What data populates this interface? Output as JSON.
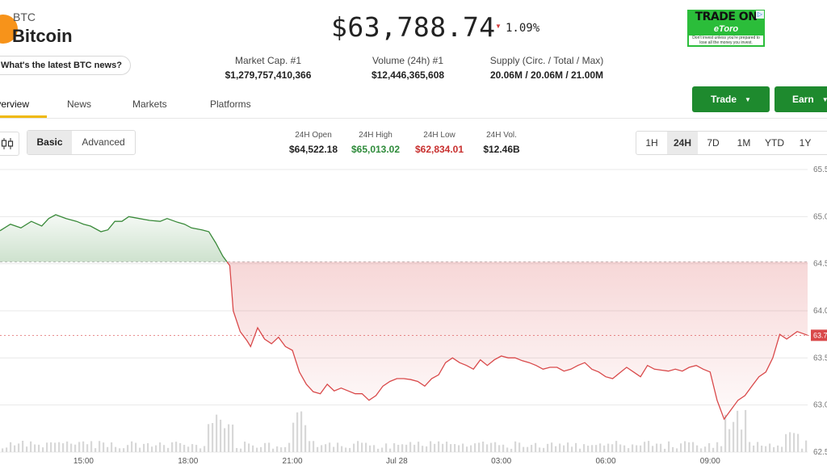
{
  "coin": {
    "symbol": "BTC",
    "name": "Bitcoin",
    "news_prompt": "What's the latest BTC news?",
    "price": "$63,788.74",
    "change": "1.09%",
    "change_direction": "down",
    "brand_color": "#f7931a"
  },
  "ad": {
    "title": "TRADE ON",
    "brand": "eToro",
    "fineprint": "Don't invest unless you're prepared to lose all the money you invest.",
    "close_glyph": "▷"
  },
  "stats": [
    {
      "label": "Market Cap. #1",
      "value": "$1,279,757,410,366"
    },
    {
      "label": "Volume (24h) #1",
      "value": "$12,446,365,608"
    },
    {
      "label": "Supply (Circ. / Total / Max)",
      "value": "20.06M / 20.06M / 21.00M"
    }
  ],
  "tabs": [
    "Overview",
    "News",
    "Markets",
    "Platforms"
  ],
  "active_tab": "Overview",
  "actions": {
    "trade": "Trade",
    "earn": "Earn"
  },
  "view_toggle": {
    "basic": "Basic",
    "advanced": "Advanced",
    "selected": "Basic"
  },
  "ohlc": [
    {
      "label": "24H Open",
      "value": "$64,522.18",
      "color": "#222222"
    },
    {
      "label": "24H High",
      "value": "$65,013.02",
      "color": "#2e8b3a"
    },
    {
      "label": "24H Low",
      "value": "$62,834.01",
      "color": "#c8302f"
    },
    {
      "label": "24H Vol.",
      "value": "$12.46B",
      "color": "#222222"
    }
  ],
  "ranges": [
    "1H",
    "24H",
    "7D",
    "1M",
    "YTD",
    "1Y"
  ],
  "active_range": "24H",
  "chart_data": {
    "type": "area",
    "baseline": 64.52,
    "last_value_label": "63.7",
    "y_ticks": [
      "65.5",
      "65.0",
      "64.5",
      "64.0",
      "63.5",
      "63.0",
      "62.5"
    ],
    "y_tick_values": [
      65.5,
      65.0,
      64.5,
      64.0,
      63.5,
      63.0,
      62.5
    ],
    "x_ticks": [
      "15:00",
      "18:00",
      "21:00",
      "Jul 28",
      "03:00",
      "06:00",
      "09:00"
    ],
    "x_tick_hours": [
      15,
      18,
      21,
      24,
      27,
      30,
      33
    ],
    "x_range": [
      12.6,
      35.8
    ],
    "y_range": [
      62.5,
      65.5
    ],
    "up_color": "#3a8a3a",
    "down_color": "#d9494a",
    "series": [
      {
        "values": [
          [
            12.6,
            64.85
          ],
          [
            12.9,
            64.92
          ],
          [
            13.2,
            64.88
          ],
          [
            13.5,
            64.95
          ],
          [
            13.8,
            64.9
          ],
          [
            14.0,
            64.98
          ],
          [
            14.2,
            65.02
          ],
          [
            14.5,
            64.98
          ],
          [
            14.8,
            64.95
          ],
          [
            15.0,
            64.92
          ],
          [
            15.2,
            64.9
          ],
          [
            15.5,
            64.84
          ],
          [
            15.7,
            64.86
          ],
          [
            15.9,
            64.95
          ],
          [
            16.1,
            64.95
          ],
          [
            16.3,
            65.0
          ],
          [
            16.6,
            64.98
          ],
          [
            16.9,
            64.96
          ],
          [
            17.2,
            64.95
          ],
          [
            17.4,
            64.98
          ],
          [
            17.7,
            64.94
          ],
          [
            17.9,
            64.92
          ],
          [
            18.1,
            64.88
          ],
          [
            18.4,
            64.86
          ],
          [
            18.6,
            64.84
          ],
          [
            18.8,
            64.72
          ],
          [
            19.0,
            64.58
          ],
          [
            19.2,
            64.48
          ],
          [
            19.3,
            64.0
          ],
          [
            19.5,
            63.78
          ],
          [
            19.7,
            63.68
          ],
          [
            19.8,
            63.62
          ],
          [
            20.0,
            63.82
          ],
          [
            20.2,
            63.7
          ],
          [
            20.4,
            63.65
          ],
          [
            20.6,
            63.72
          ],
          [
            20.8,
            63.62
          ],
          [
            21.0,
            63.58
          ],
          [
            21.2,
            63.35
          ],
          [
            21.4,
            63.22
          ],
          [
            21.6,
            63.14
          ],
          [
            21.8,
            63.12
          ],
          [
            22.0,
            63.22
          ],
          [
            22.2,
            63.15
          ],
          [
            22.4,
            63.18
          ],
          [
            22.6,
            63.15
          ],
          [
            22.8,
            63.12
          ],
          [
            23.0,
            63.12
          ],
          [
            23.2,
            63.05
          ],
          [
            23.4,
            63.1
          ],
          [
            23.6,
            63.2
          ],
          [
            23.8,
            63.25
          ],
          [
            24.0,
            63.28
          ],
          [
            24.2,
            63.28
          ],
          [
            24.4,
            63.27
          ],
          [
            24.6,
            63.25
          ],
          [
            24.8,
            63.2
          ],
          [
            25.0,
            63.28
          ],
          [
            25.2,
            63.32
          ],
          [
            25.4,
            63.45
          ],
          [
            25.6,
            63.5
          ],
          [
            25.8,
            63.45
          ],
          [
            26.0,
            63.42
          ],
          [
            26.2,
            63.38
          ],
          [
            26.4,
            63.48
          ],
          [
            26.6,
            63.42
          ],
          [
            26.8,
            63.48
          ],
          [
            27.0,
            63.52
          ],
          [
            27.2,
            63.5
          ],
          [
            27.4,
            63.5
          ],
          [
            27.6,
            63.47
          ],
          [
            27.8,
            63.45
          ],
          [
            28.0,
            63.42
          ],
          [
            28.2,
            63.38
          ],
          [
            28.4,
            63.4
          ],
          [
            28.6,
            63.4
          ],
          [
            28.8,
            63.36
          ],
          [
            29.0,
            63.38
          ],
          [
            29.2,
            63.42
          ],
          [
            29.4,
            63.45
          ],
          [
            29.6,
            63.38
          ],
          [
            29.8,
            63.35
          ],
          [
            30.0,
            63.3
          ],
          [
            30.2,
            63.28
          ],
          [
            30.4,
            63.34
          ],
          [
            30.6,
            63.4
          ],
          [
            30.8,
            63.35
          ],
          [
            31.0,
            63.3
          ],
          [
            31.2,
            63.42
          ],
          [
            31.4,
            63.38
          ],
          [
            31.6,
            63.37
          ],
          [
            31.8,
            63.36
          ],
          [
            32.0,
            63.38
          ],
          [
            32.2,
            63.36
          ],
          [
            32.4,
            63.4
          ],
          [
            32.6,
            63.42
          ],
          [
            32.8,
            63.38
          ],
          [
            33.0,
            63.35
          ],
          [
            33.2,
            63.05
          ],
          [
            33.4,
            62.85
          ],
          [
            33.6,
            62.95
          ],
          [
            33.8,
            63.05
          ],
          [
            34.0,
            63.1
          ],
          [
            34.2,
            63.2
          ],
          [
            34.4,
            63.3
          ],
          [
            34.6,
            63.35
          ],
          [
            34.8,
            63.5
          ],
          [
            35.0,
            63.75
          ],
          [
            35.2,
            63.7
          ],
          [
            35.5,
            63.78
          ],
          [
            35.8,
            63.74
          ]
        ]
      }
    ]
  }
}
